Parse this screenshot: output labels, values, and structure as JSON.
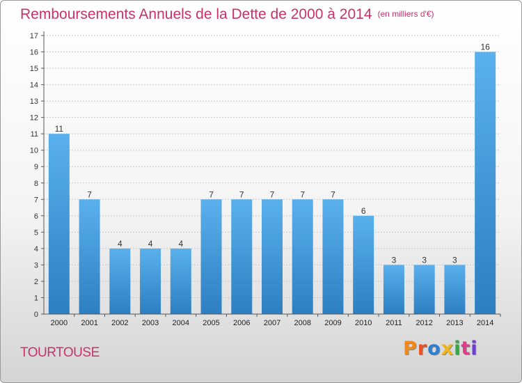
{
  "title": "Remboursements Annuels de la Dette de 2000 à 2014",
  "subtitle": "(en milliers d'€)",
  "commune": "TOURTOUSE",
  "logo": {
    "text": "Proxiti",
    "colors": [
      "#f08a1c",
      "#e8542a",
      "#2a7fd0",
      "#f0b41c",
      "#3aa64a",
      "#e23a8c",
      "#6c3fd0"
    ]
  },
  "colors": {
    "bar_light": "#5ab0ec",
    "bar_dark": "#2d7fc1",
    "grid": "#c8c8c8",
    "axis": "#555555",
    "accent": "#c8326a"
  },
  "chart_data": {
    "type": "bar",
    "title": "Remboursements Annuels de la Dette de 2000 à 2014",
    "subtitle": "(en milliers d'€)",
    "categories": [
      "2000",
      "2001",
      "2002",
      "2003",
      "2004",
      "2005",
      "2006",
      "2007",
      "2008",
      "2009",
      "2010",
      "2011",
      "2012",
      "2013",
      "2014"
    ],
    "values": [
      11,
      7,
      4,
      4,
      4,
      7,
      7,
      7,
      7,
      7,
      6,
      3,
      3,
      3,
      16
    ],
    "data_labels": [
      "11",
      "7",
      "4",
      "4",
      "4",
      "7",
      "7",
      "7",
      "7",
      "7",
      "6",
      "3",
      "3",
      "3",
      "16"
    ],
    "yticks": [
      "0",
      "1",
      "2",
      "3",
      "4",
      "5",
      "6",
      "7",
      "8",
      "9",
      "10",
      "11",
      "12",
      "13",
      "14",
      "15",
      "16",
      "17"
    ],
    "ylim": [
      0,
      17
    ],
    "grid": true,
    "legend": false
  }
}
